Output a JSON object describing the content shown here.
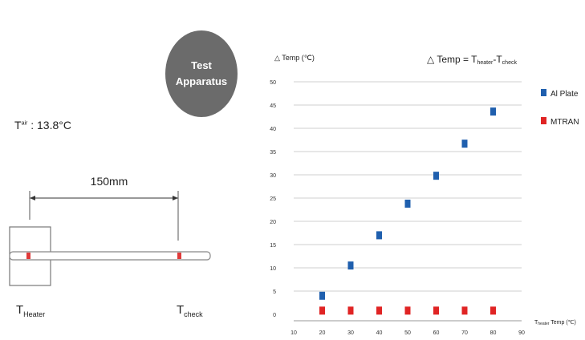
{
  "apparatus": {
    "badge_line1": "Test",
    "badge_line2": "Apparatus",
    "t_ambient_symbol": "T",
    "t_ambient_sup": "air",
    "t_ambient_value": " : 13.8°C",
    "distance_label": "150mm",
    "heater_label_T": "T",
    "heater_label_sub": "Heater",
    "check_label_T": "T",
    "check_label_sub": "check",
    "colors": {
      "badge": "#6b6b6b",
      "sensor_dot": "#e03a3a",
      "bar_outline": "#888888"
    }
  },
  "chart_data": {
    "type": "scatter",
    "title": "△ Temp = T_heater-T_check",
    "title_main": "△ Temp = T",
    "title_sub1": "heater",
    "title_mid": "-T",
    "title_sub2": "check",
    "ylabel": "△ Temp (℃)",
    "xlabel": "T_heater Temp (℃)",
    "xlabel_sub": "heater",
    "xlabel_rest": " Temp (℃)",
    "xlim": [
      10,
      90
    ],
    "ylim": [
      0,
      50
    ],
    "xticks": [
      10,
      20,
      30,
      40,
      50,
      60,
      70,
      80,
      90
    ],
    "yticks": [
      0,
      5,
      10,
      15,
      20,
      25,
      30,
      35,
      40,
      45,
      50
    ],
    "grid": "horizontal",
    "legend_position": "right",
    "series": [
      {
        "name": "Al Plate",
        "color": "#1f5fae",
        "x": [
          20,
          30,
          40,
          50,
          60,
          70,
          80
        ],
        "y": [
          4,
          10.5,
          17,
          23.8,
          29.8,
          36.7,
          43.6
        ]
      },
      {
        "name": "MTRAN",
        "color": "#e02424",
        "x": [
          20,
          30,
          40,
          50,
          60,
          70,
          80
        ],
        "y": [
          0.8,
          0.8,
          0.8,
          0.8,
          0.8,
          0.8,
          0.8
        ]
      }
    ]
  }
}
